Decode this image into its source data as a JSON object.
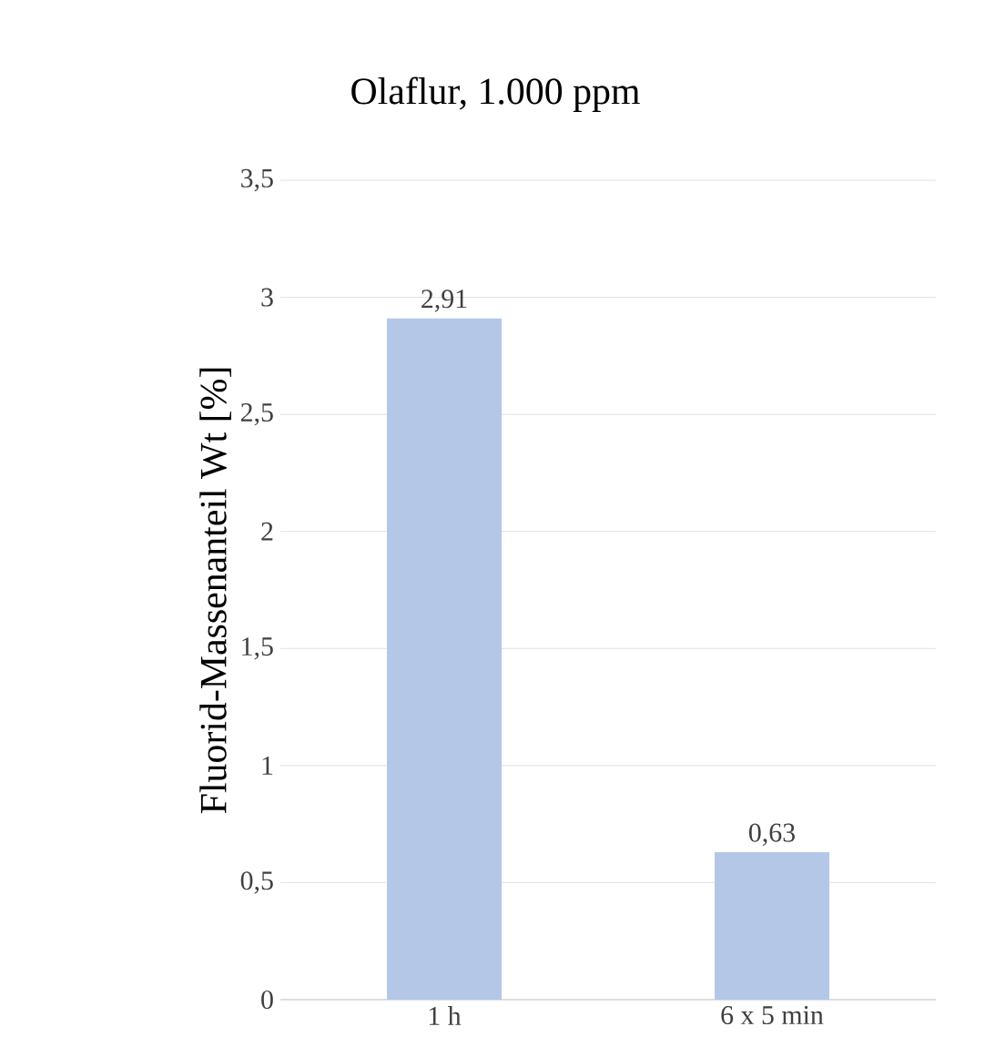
{
  "chart_data": {
    "type": "bar",
    "title": "Olaflur, 1.000 ppm",
    "ylabel": "Fluorid-Massenanteil Wt [%]",
    "categories": [
      "1 h",
      "6 x 5 min"
    ],
    "values": [
      2.91,
      0.63
    ],
    "color": "#b4c7e7",
    "value_labels": [
      "2,91",
      "0,63"
    ],
    "ylim": [
      0,
      3.5
    ],
    "yticks": [
      {
        "value": 0,
        "label": "0"
      },
      {
        "value": 0.5,
        "label": "0,5"
      },
      {
        "value": 1,
        "label": "1"
      },
      {
        "value": 1.5,
        "label": "1,5"
      },
      {
        "value": 2,
        "label": "2"
      },
      {
        "value": 2.5,
        "label": "2,5"
      },
      {
        "value": 3,
        "label": "3"
      },
      {
        "value": 3.5,
        "label": "3,5"
      }
    ],
    "grid": "y"
  }
}
